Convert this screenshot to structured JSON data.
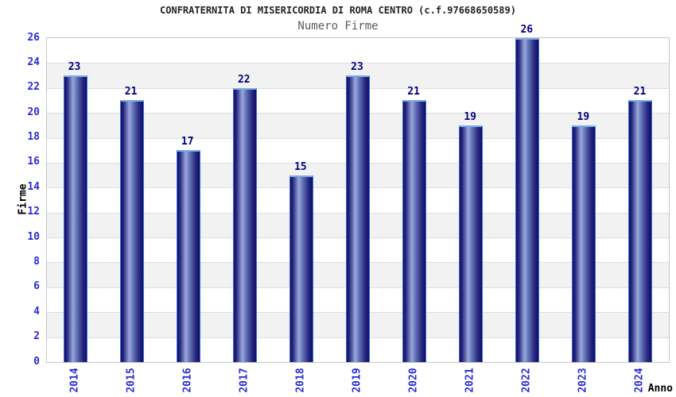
{
  "chart_data": {
    "type": "bar",
    "title": "CONFRATERNITA DI MISERICORDIA DI ROMA CENTRO (c.f.97668650589)",
    "subtitle": "Numero Firme",
    "xlabel": "Anno",
    "ylabel": "Firme",
    "categories": [
      "2014",
      "2015",
      "2016",
      "2017",
      "2018",
      "2019",
      "2020",
      "2021",
      "2022",
      "2023",
      "2024"
    ],
    "values": [
      23,
      21,
      17,
      22,
      15,
      23,
      21,
      19,
      26,
      19,
      21
    ],
    "ylim": [
      0,
      26
    ],
    "ytick_step": 2,
    "yticks": [
      0,
      2,
      4,
      6,
      8,
      10,
      12,
      14,
      16,
      18,
      20,
      22,
      24,
      26
    ],
    "grid": "horizontal",
    "alternating_row_bands": true,
    "legend_position": "none"
  },
  "colors": {
    "background": "#ffffff",
    "title_text": "#222222",
    "subtitle_text": "#5a5a5a",
    "tick_label": "#2b2bd5",
    "value_label": "#00007e",
    "axis_title_text": "#000000",
    "bar_edge_dark": "#0e0e66",
    "bar_mid_dark": "#28287e",
    "bar_highlight": "#9aa8dc",
    "bar_outline": "#3a6fe0",
    "bar_top_outline": "#76ace6",
    "plot_frame": "#c6c6c6",
    "grid_line": "#dedede",
    "band_fill": "#f2f2f2"
  }
}
